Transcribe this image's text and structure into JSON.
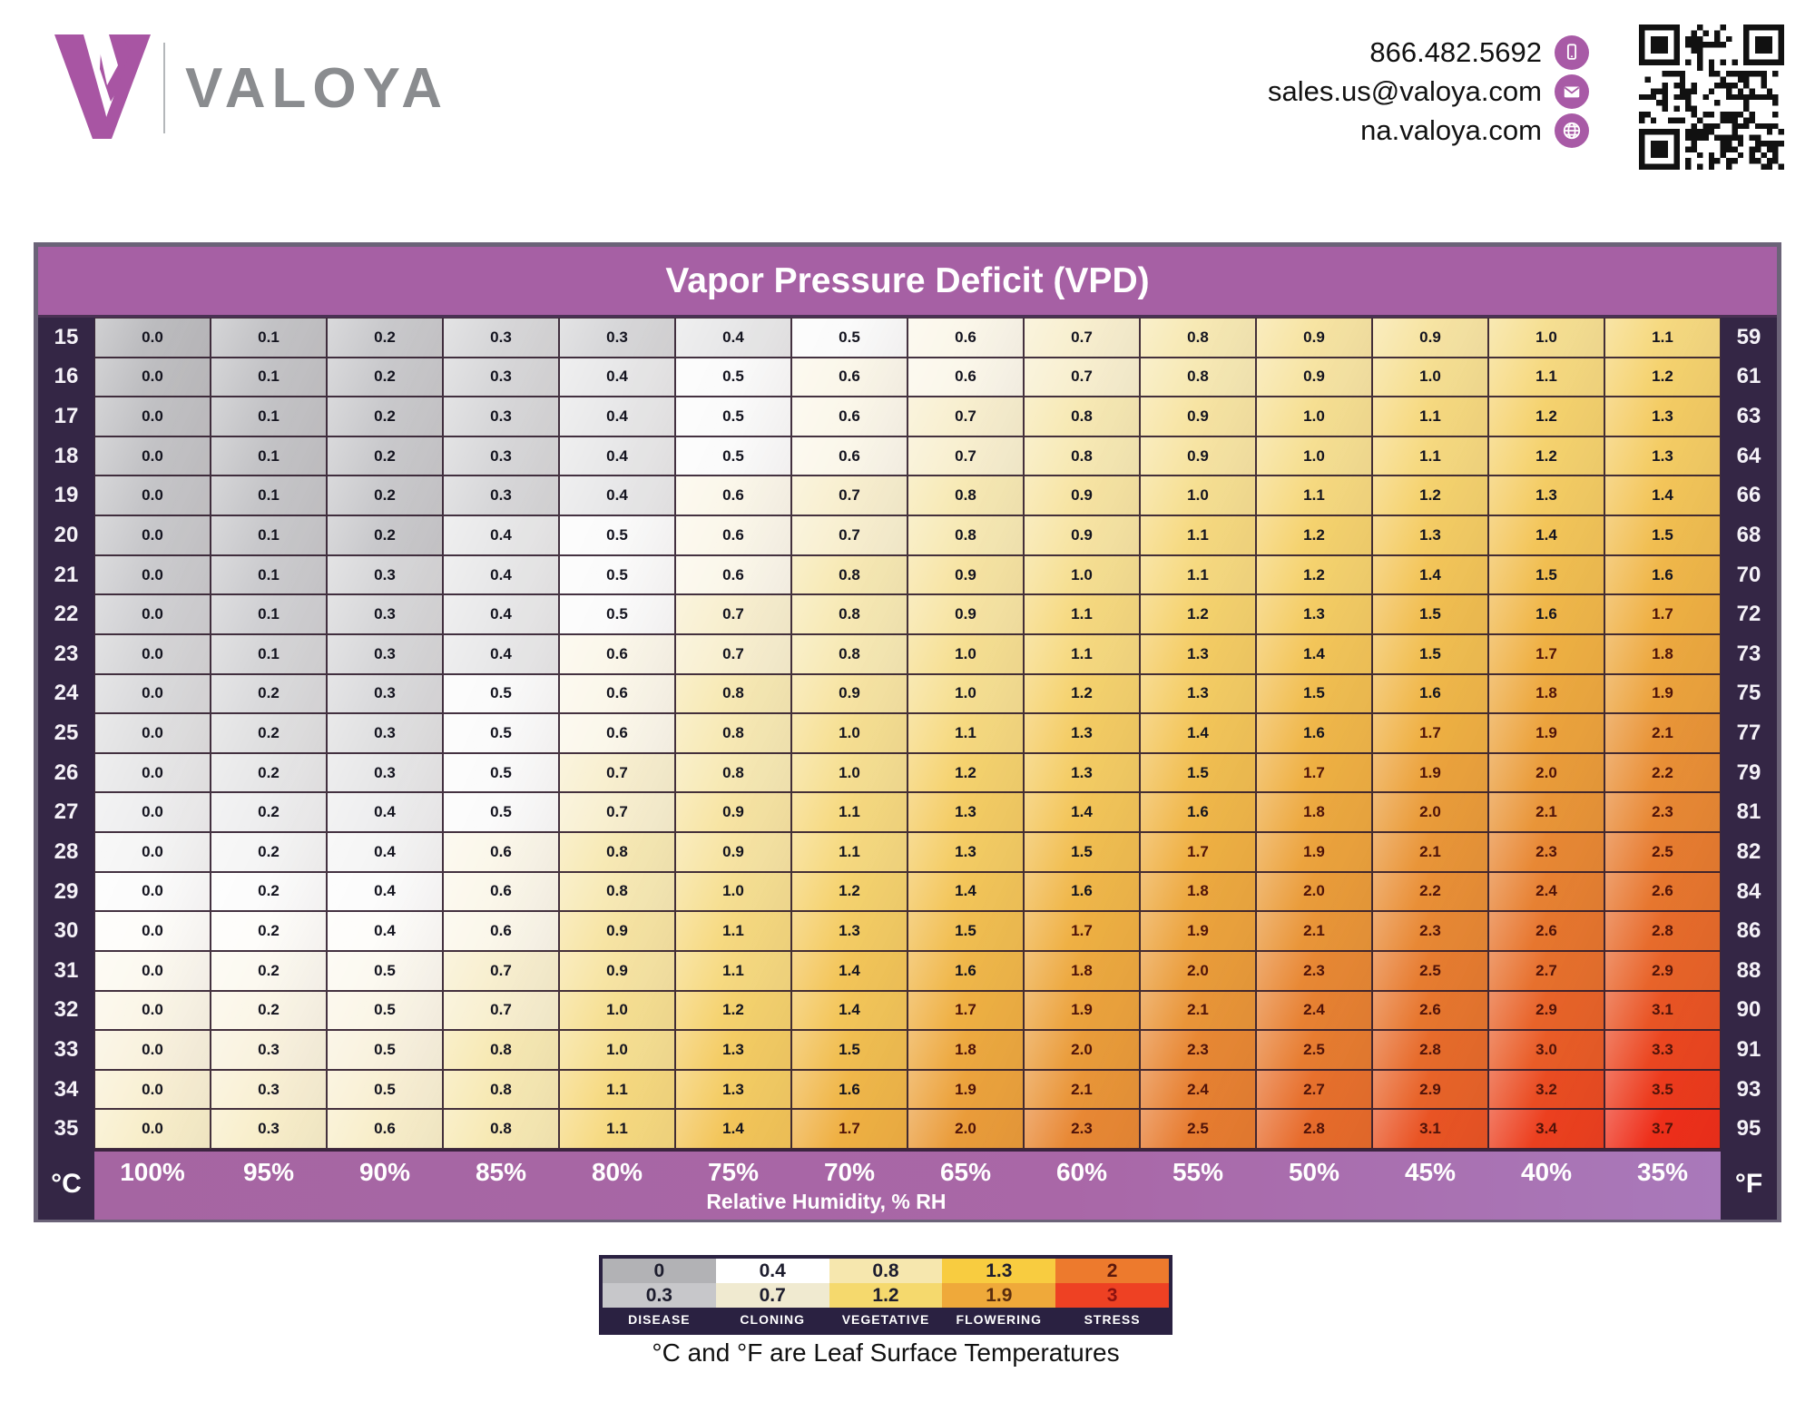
{
  "header": {
    "brand": "VALOYA",
    "phone": "866.482.5692",
    "email": "sales.us@valoya.com",
    "website": "na.valoya.com"
  },
  "panel": {
    "title": "Vapor Pressure Deficit (VPD)",
    "left_axis_label": "°C",
    "right_axis_label": "°F",
    "rh_caption": "Relative Humidity, % RH"
  },
  "chart_data": {
    "type": "heatmap",
    "title": "Vapor Pressure Deficit (VPD)",
    "xlabel": "Relative Humidity, % RH",
    "ylabel_left": "°C (leaf surface temperature)",
    "ylabel_right": "°F (leaf surface temperature)",
    "columns_rh_percent": [
      "100%",
      "95%",
      "90%",
      "85%",
      "80%",
      "75%",
      "70%",
      "65%",
      "60%",
      "55%",
      "50%",
      "45%",
      "40%",
      "35%"
    ],
    "rows": [
      {
        "c": 15,
        "f": 59,
        "values": [
          0.0,
          0.1,
          0.2,
          0.3,
          0.3,
          0.4,
          0.5,
          0.6,
          0.7,
          0.8,
          0.9,
          0.9,
          1.0,
          1.1
        ]
      },
      {
        "c": 16,
        "f": 61,
        "values": [
          0.0,
          0.1,
          0.2,
          0.3,
          0.4,
          0.5,
          0.6,
          0.6,
          0.7,
          0.8,
          0.9,
          1.0,
          1.1,
          1.2
        ]
      },
      {
        "c": 17,
        "f": 63,
        "values": [
          0.0,
          0.1,
          0.2,
          0.3,
          0.4,
          0.5,
          0.6,
          0.7,
          0.8,
          0.9,
          1.0,
          1.1,
          1.2,
          1.3
        ]
      },
      {
        "c": 18,
        "f": 64,
        "values": [
          0.0,
          0.1,
          0.2,
          0.3,
          0.4,
          0.5,
          0.6,
          0.7,
          0.8,
          0.9,
          1.0,
          1.1,
          1.2,
          1.3
        ]
      },
      {
        "c": 19,
        "f": 66,
        "values": [
          0.0,
          0.1,
          0.2,
          0.3,
          0.4,
          0.6,
          0.7,
          0.8,
          0.9,
          1.0,
          1.1,
          1.2,
          1.3,
          1.4
        ]
      },
      {
        "c": 20,
        "f": 68,
        "values": [
          0.0,
          0.1,
          0.2,
          0.4,
          0.5,
          0.6,
          0.7,
          0.8,
          0.9,
          1.1,
          1.2,
          1.3,
          1.4,
          1.5
        ]
      },
      {
        "c": 21,
        "f": 70,
        "values": [
          0.0,
          0.1,
          0.3,
          0.4,
          0.5,
          0.6,
          0.8,
          0.9,
          1.0,
          1.1,
          1.2,
          1.4,
          1.5,
          1.6
        ]
      },
      {
        "c": 22,
        "f": 72,
        "values": [
          0.0,
          0.1,
          0.3,
          0.4,
          0.5,
          0.7,
          0.8,
          0.9,
          1.1,
          1.2,
          1.3,
          1.5,
          1.6,
          1.7
        ]
      },
      {
        "c": 23,
        "f": 73,
        "values": [
          0.0,
          0.1,
          0.3,
          0.4,
          0.6,
          0.7,
          0.8,
          1.0,
          1.1,
          1.3,
          1.4,
          1.5,
          1.7,
          1.8
        ]
      },
      {
        "c": 24,
        "f": 75,
        "values": [
          0.0,
          0.2,
          0.3,
          0.5,
          0.6,
          0.8,
          0.9,
          1.0,
          1.2,
          1.3,
          1.5,
          1.6,
          1.8,
          1.9
        ]
      },
      {
        "c": 25,
        "f": 77,
        "values": [
          0.0,
          0.2,
          0.3,
          0.5,
          0.6,
          0.8,
          1.0,
          1.1,
          1.3,
          1.4,
          1.6,
          1.7,
          1.9,
          2.1
        ]
      },
      {
        "c": 26,
        "f": 79,
        "values": [
          0.0,
          0.2,
          0.3,
          0.5,
          0.7,
          0.8,
          1.0,
          1.2,
          1.3,
          1.5,
          1.7,
          1.9,
          2.0,
          2.2
        ]
      },
      {
        "c": 27,
        "f": 81,
        "values": [
          0.0,
          0.2,
          0.4,
          0.5,
          0.7,
          0.9,
          1.1,
          1.3,
          1.4,
          1.6,
          1.8,
          2.0,
          2.1,
          2.3
        ]
      },
      {
        "c": 28,
        "f": 82,
        "values": [
          0.0,
          0.2,
          0.4,
          0.6,
          0.8,
          0.9,
          1.1,
          1.3,
          1.5,
          1.7,
          1.9,
          2.1,
          2.3,
          2.5
        ]
      },
      {
        "c": 29,
        "f": 84,
        "values": [
          0.0,
          0.2,
          0.4,
          0.6,
          0.8,
          1.0,
          1.2,
          1.4,
          1.6,
          1.8,
          2.0,
          2.2,
          2.4,
          2.6
        ]
      },
      {
        "c": 30,
        "f": 86,
        "values": [
          0.0,
          0.2,
          0.4,
          0.6,
          0.9,
          1.1,
          1.3,
          1.5,
          1.7,
          1.9,
          2.1,
          2.3,
          2.6,
          2.8
        ]
      },
      {
        "c": 31,
        "f": 88,
        "values": [
          0.0,
          0.2,
          0.5,
          0.7,
          0.9,
          1.1,
          1.4,
          1.6,
          1.8,
          2.0,
          2.3,
          2.5,
          2.7,
          2.9
        ]
      },
      {
        "c": 32,
        "f": 90,
        "values": [
          0.0,
          0.2,
          0.5,
          0.7,
          1.0,
          1.2,
          1.4,
          1.7,
          1.9,
          2.1,
          2.4,
          2.6,
          2.9,
          3.1
        ]
      },
      {
        "c": 33,
        "f": 91,
        "values": [
          0.0,
          0.3,
          0.5,
          0.8,
          1.0,
          1.3,
          1.5,
          1.8,
          2.0,
          2.3,
          2.5,
          2.8,
          3.0,
          3.3
        ]
      },
      {
        "c": 34,
        "f": 93,
        "values": [
          0.0,
          0.3,
          0.5,
          0.8,
          1.1,
          1.3,
          1.6,
          1.9,
          2.1,
          2.4,
          2.7,
          2.9,
          3.2,
          3.5
        ]
      },
      {
        "c": 35,
        "f": 95,
        "values": [
          0.0,
          0.3,
          0.6,
          0.8,
          1.1,
          1.4,
          1.7,
          2.0,
          2.3,
          2.5,
          2.8,
          3.1,
          3.4,
          3.7
        ]
      }
    ],
    "color_scale": [
      [
        0.0,
        "#bcbcbf"
      ],
      [
        0.2,
        "#c9c9cc"
      ],
      [
        0.35,
        "#dededf"
      ],
      [
        0.45,
        "#f2f2f2"
      ],
      [
        0.52,
        "#ffffff"
      ],
      [
        0.65,
        "#f9f2dd"
      ],
      [
        0.8,
        "#f7e9b4"
      ],
      [
        1.0,
        "#f6df92"
      ],
      [
        1.2,
        "#f5d26e"
      ],
      [
        1.45,
        "#f2c254"
      ],
      [
        1.7,
        "#efb043"
      ],
      [
        2.0,
        "#ea9c3a"
      ],
      [
        2.4,
        "#e78132"
      ],
      [
        2.8,
        "#e76b2b"
      ],
      [
        3.2,
        "#ea4c22"
      ],
      [
        3.7,
        "#ee2f1a"
      ]
    ],
    "row_tint_strength": 0.72,
    "value_text_dark": "#14141f",
    "value_text_warm": "#4f1309"
  },
  "legend": {
    "columns": [
      {
        "label": "DISEASE",
        "top": {
          "text": "0",
          "bg": "#b2b2b5",
          "color": "#1d1d2e"
        },
        "bottom": {
          "text": "0.3",
          "bg": "#c7c7ca",
          "color": "#1d1d2e"
        }
      },
      {
        "label": "CLONING",
        "top": {
          "text": "0.4",
          "bg": "#ffffff",
          "color": "#1d1d2e"
        },
        "bottom": {
          "text": "0.7",
          "bg": "#f0ead0",
          "color": "#1d1d2e"
        }
      },
      {
        "label": "VEGETATIVE",
        "top": {
          "text": "0.8",
          "bg": "#f6e7ae",
          "color": "#1d1d2e"
        },
        "bottom": {
          "text": "1.2",
          "bg": "#f5d96d",
          "color": "#1d1d2e"
        }
      },
      {
        "label": "FLOWERING",
        "top": {
          "text": "1.3",
          "bg": "#f8cc40",
          "color": "#1d1d2e"
        },
        "bottom": {
          "text": "1.9",
          "bg": "#efa93a",
          "color": "#5a2d0e"
        }
      },
      {
        "label": "STRESS",
        "top": {
          "text": "2",
          "bg": "#ed7a2d",
          "color": "#5a180c"
        },
        "bottom": {
          "text": "3",
          "bg": "#ee4123",
          "color": "#8c1210"
        }
      }
    ]
  },
  "note": "°C and °F are Leaf Surface Temperatures",
  "colors": {
    "accent_purple": "#a660a4",
    "dark_strip": "#342645",
    "logo_purple": "#a855a3",
    "brand_gray": "#8a8c8f",
    "frame": "#6b6378"
  }
}
